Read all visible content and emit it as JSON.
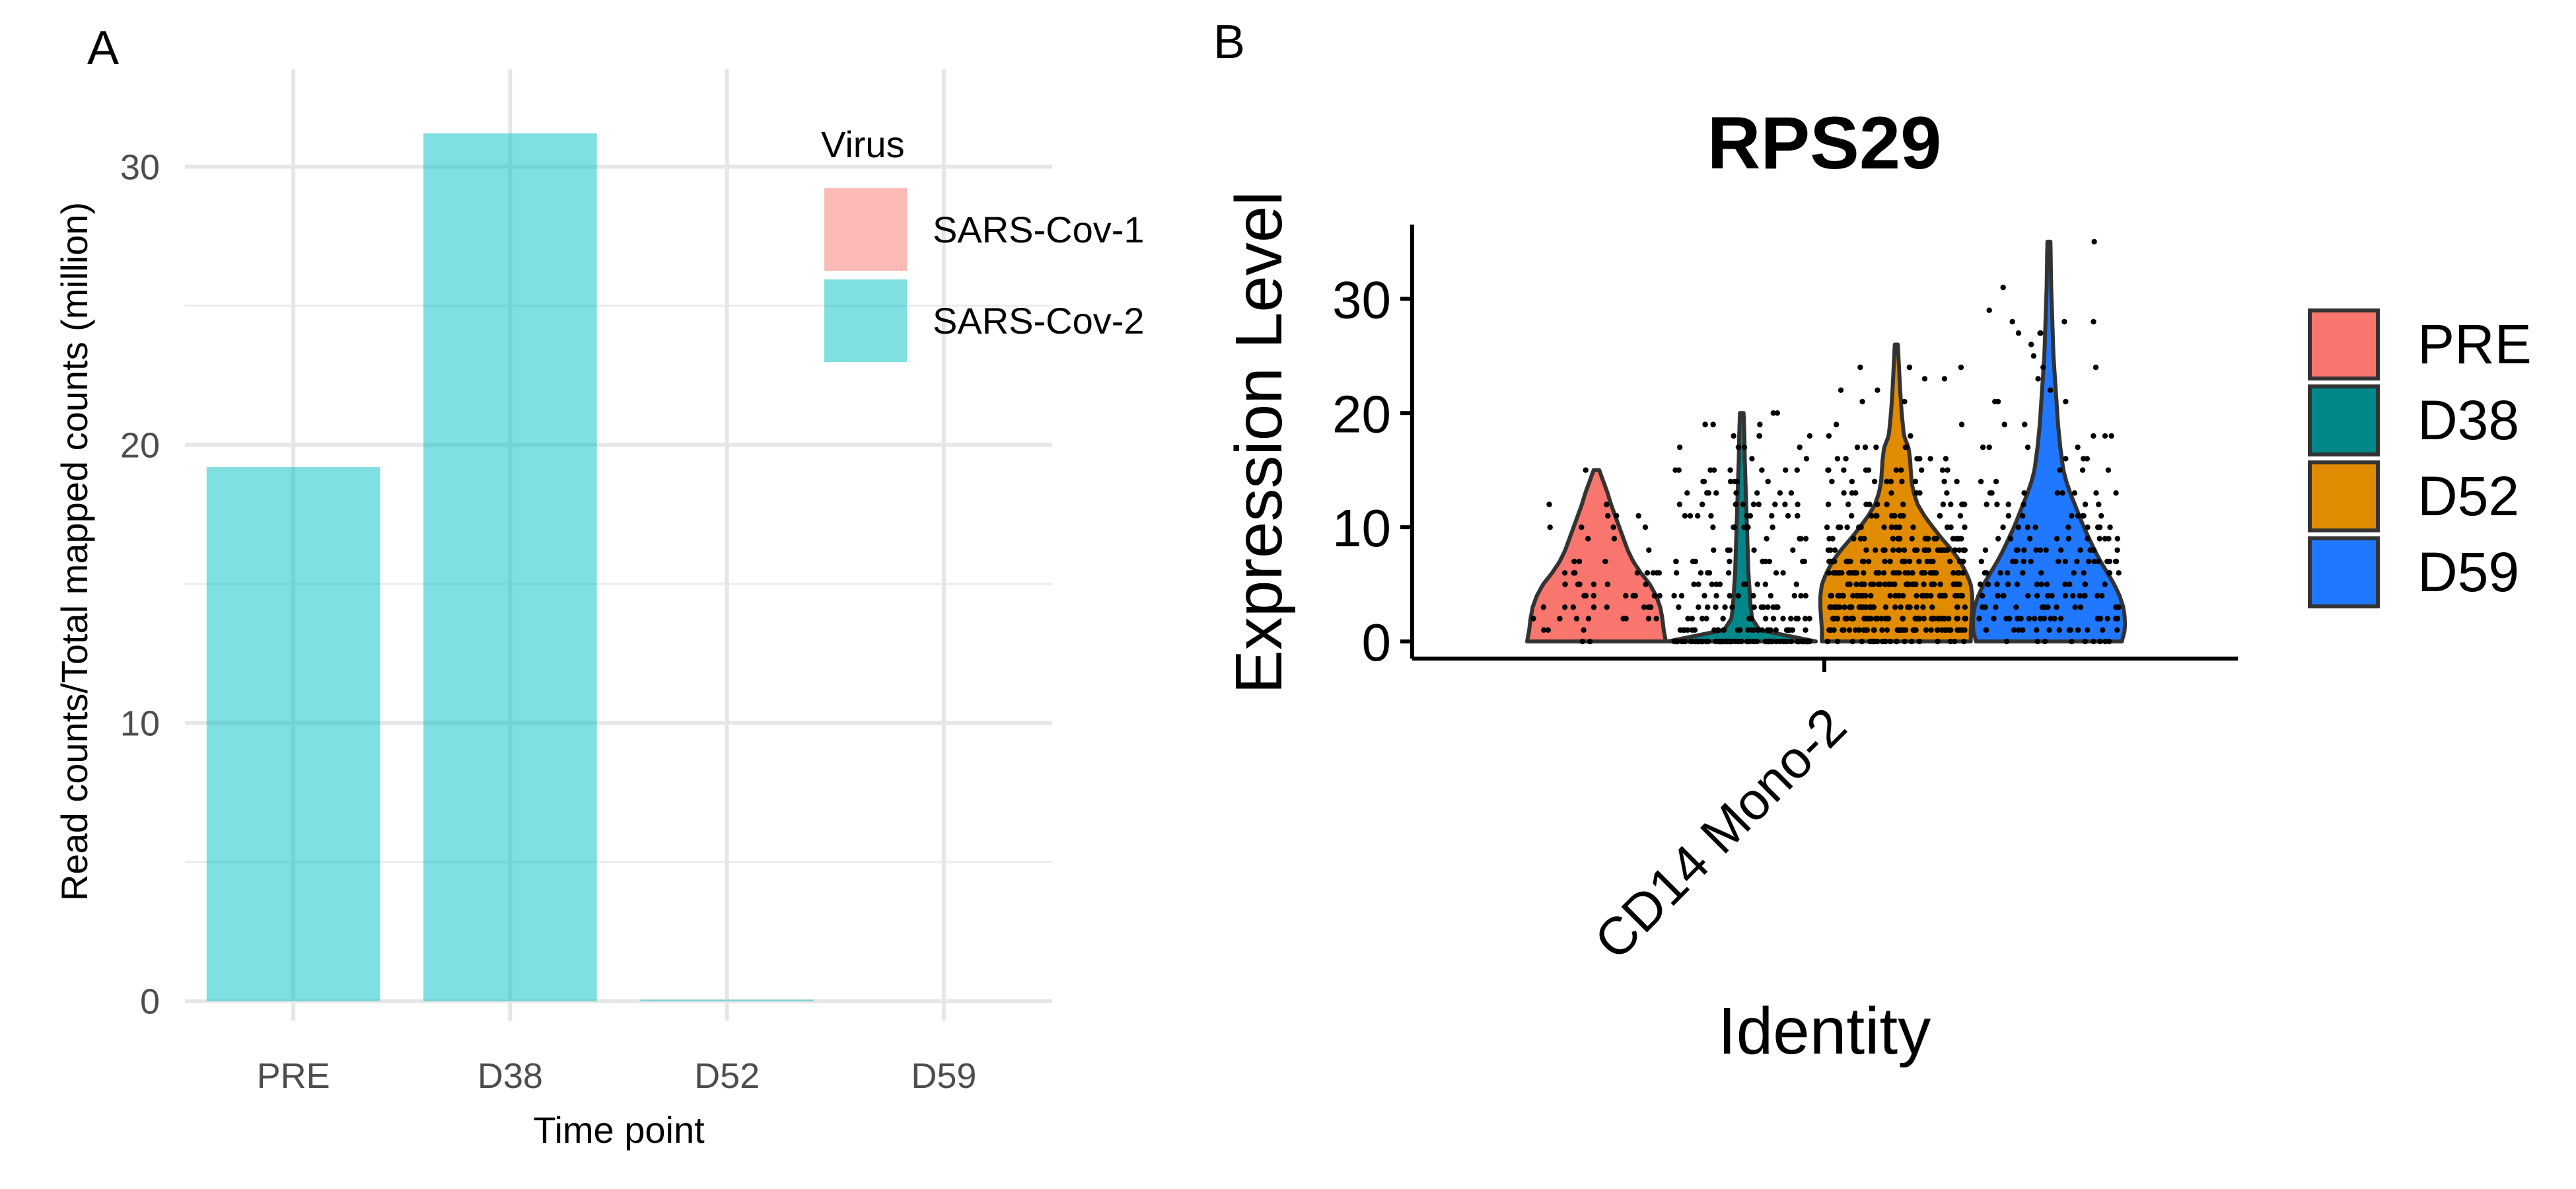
{
  "chart_data": [
    {
      "panel": "A",
      "type": "bar",
      "xlabel": "Time point",
      "ylabel": "Read counts/Total mapped counts (million)",
      "categories": [
        "PRE",
        "D38",
        "D52",
        "D59"
      ],
      "ylim": [
        -0.7,
        33.5
      ],
      "yticks": [
        0,
        10,
        20,
        30
      ],
      "grid": true,
      "legend": {
        "title": "Virus",
        "position": "top-right",
        "entries": [
          "SARS-Cov-1",
          "SARS-Cov-2"
        ]
      },
      "series": [
        {
          "name": "SARS-Cov-1",
          "color": "#F8766D",
          "values": [
            0,
            0,
            0,
            0
          ]
        },
        {
          "name": "SARS-Cov-2",
          "color": "#00BFC4",
          "values": [
            19.2,
            31.2,
            0.05,
            0
          ]
        }
      ]
    },
    {
      "panel": "B",
      "type": "violin",
      "title": "RPS29",
      "xlabel": "Identity",
      "ylabel": "Expression Level",
      "categories": [
        "CD14 Mono-2"
      ],
      "ylim": [
        -1.5,
        36.5
      ],
      "yticks": [
        0,
        10,
        20,
        30
      ],
      "grid": false,
      "legend": {
        "position": "right",
        "entries": [
          "PRE",
          "D38",
          "D52",
          "D59"
        ]
      },
      "series": [
        {
          "name": "PRE",
          "color": "#F8766D",
          "max": 15,
          "density": [
            [
              0,
              1.0
            ],
            [
              1,
              0.97
            ],
            [
              2,
              0.95
            ],
            [
              3,
              0.92
            ],
            [
              4,
              0.86
            ],
            [
              5,
              0.77
            ],
            [
              6,
              0.64
            ],
            [
              7,
              0.53
            ],
            [
              8,
              0.45
            ],
            [
              9,
              0.39
            ],
            [
              10,
              0.33
            ],
            [
              11,
              0.27
            ],
            [
              12,
              0.21
            ],
            [
              13,
              0.16
            ],
            [
              14,
              0.1
            ],
            [
              15,
              0.04
            ]
          ]
        },
        {
          "name": "D38",
          "color": "#00878A",
          "max": 20,
          "density": [
            [
              0,
              1.0
            ],
            [
              0.5,
              0.62
            ],
            [
              1,
              0.24
            ],
            [
              2,
              0.14
            ],
            [
              3,
              0.12
            ],
            [
              4,
              0.11
            ],
            [
              5,
              0.1
            ],
            [
              6,
              0.09
            ],
            [
              8,
              0.08
            ],
            [
              10,
              0.07
            ],
            [
              12,
              0.06
            ],
            [
              14,
              0.05
            ],
            [
              16,
              0.04
            ],
            [
              18,
              0.035
            ],
            [
              20,
              0.025
            ]
          ]
        },
        {
          "name": "D52",
          "color": "#E08B00",
          "max": 26,
          "density": [
            [
              0,
              0.98
            ],
            [
              1,
              0.98
            ],
            [
              2,
              0.99
            ],
            [
              3,
              1.0
            ],
            [
              4,
              1.0
            ],
            [
              5,
              0.98
            ],
            [
              6,
              0.92
            ],
            [
              7,
              0.84
            ],
            [
              8,
              0.73
            ],
            [
              9,
              0.6
            ],
            [
              10,
              0.48
            ],
            [
              11,
              0.37
            ],
            [
              12,
              0.28
            ],
            [
              13,
              0.23
            ],
            [
              14,
              0.2
            ],
            [
              15,
              0.19
            ],
            [
              16,
              0.18
            ],
            [
              17,
              0.16
            ],
            [
              18,
              0.1
            ],
            [
              20,
              0.07
            ],
            [
              22,
              0.05
            ],
            [
              24,
              0.035
            ],
            [
              26,
              0.02
            ]
          ]
        },
        {
          "name": "D59",
          "color": "#1F78FF",
          "max": 35,
          "density": [
            [
              0,
              0.96
            ],
            [
              1,
              1.0
            ],
            [
              2,
              1.0
            ],
            [
              3,
              0.98
            ],
            [
              4,
              0.93
            ],
            [
              5,
              0.86
            ],
            [
              6,
              0.77
            ],
            [
              7,
              0.68
            ],
            [
              8,
              0.6
            ],
            [
              9,
              0.53
            ],
            [
              10,
              0.46
            ],
            [
              11,
              0.4
            ],
            [
              12,
              0.34
            ],
            [
              13,
              0.28
            ],
            [
              14,
              0.23
            ],
            [
              15,
              0.19
            ],
            [
              17,
              0.15
            ],
            [
              19,
              0.12
            ],
            [
              21,
              0.1
            ],
            [
              23,
              0.08
            ],
            [
              25,
              0.06
            ],
            [
              27,
              0.05
            ],
            [
              29,
              0.04
            ],
            [
              31,
              0.03
            ],
            [
              33,
              0.025
            ],
            [
              35,
              0.02
            ]
          ]
        }
      ]
    }
  ],
  "panel_labels": {
    "a": "A",
    "b": "B"
  }
}
